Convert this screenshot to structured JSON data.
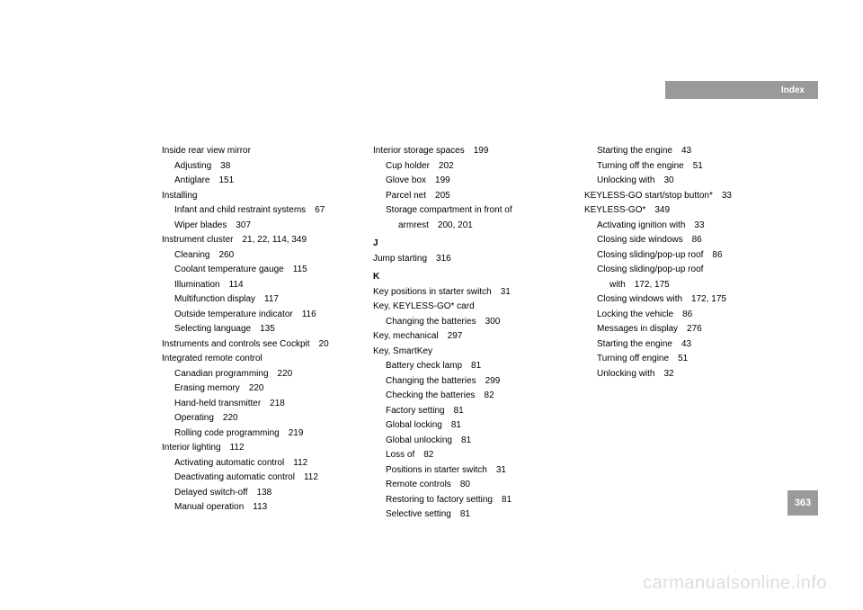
{
  "header": {
    "label": "Index"
  },
  "page_number": "363",
  "watermark": "carmanualsonline.info",
  "colors": {
    "bar_bg": "#9a9a9a",
    "bar_text": "#ffffff",
    "body_text": "#000000",
    "watermark": "#dddddd",
    "page_bg": "#ffffff"
  },
  "columns": [
    {
      "entries": [
        {
          "level": 0,
          "text": "Inside rear view mirror",
          "pages": ""
        },
        {
          "level": 1,
          "text": "Adjusting",
          "pages": "38"
        },
        {
          "level": 1,
          "text": "Antiglare",
          "pages": "151"
        },
        {
          "level": 0,
          "text": "Installing",
          "pages": ""
        },
        {
          "level": 1,
          "text": "Infant and child restraint systems",
          "pages": "67"
        },
        {
          "level": 1,
          "text": "Wiper blades",
          "pages": "307"
        },
        {
          "level": 0,
          "text": "Instrument cluster",
          "pages": "21, 22, 114, 349"
        },
        {
          "level": 1,
          "text": "Cleaning",
          "pages": "260"
        },
        {
          "level": 1,
          "text": "Coolant temperature gauge",
          "pages": "115"
        },
        {
          "level": 1,
          "text": "Illumination",
          "pages": "114"
        },
        {
          "level": 1,
          "text": "Multifunction display",
          "pages": "117"
        },
        {
          "level": 1,
          "text": "Outside temperature indicator",
          "pages": "116"
        },
        {
          "level": 1,
          "text": "Selecting language",
          "pages": "135"
        },
        {
          "level": 0,
          "text": "Instruments and controls see Cockpit",
          "pages": "20"
        },
        {
          "level": 0,
          "text": "Integrated remote control",
          "pages": ""
        },
        {
          "level": 1,
          "text": "Canadian programming",
          "pages": "220"
        },
        {
          "level": 1,
          "text": "Erasing memory",
          "pages": "220"
        },
        {
          "level": 1,
          "text": "Hand-held transmitter",
          "pages": "218"
        },
        {
          "level": 1,
          "text": "Operating",
          "pages": "220"
        },
        {
          "level": 1,
          "text": "Rolling code programming",
          "pages": "219"
        },
        {
          "level": 0,
          "text": "Interior lighting",
          "pages": "112"
        },
        {
          "level": 1,
          "text": "Activating automatic control",
          "pages": "112"
        },
        {
          "level": 1,
          "text": "Deactivating automatic control",
          "pages": "112"
        },
        {
          "level": 1,
          "text": "Delayed switch-off",
          "pages": "138"
        },
        {
          "level": 1,
          "text": "Manual operation",
          "pages": "113"
        }
      ]
    },
    {
      "entries": [
        {
          "level": 0,
          "text": "Interior storage spaces",
          "pages": "199"
        },
        {
          "level": 1,
          "text": "Cup holder",
          "pages": "202"
        },
        {
          "level": 1,
          "text": "Glove box",
          "pages": "199"
        },
        {
          "level": 1,
          "text": "Parcel net",
          "pages": "205"
        },
        {
          "level": 1,
          "text": "Storage compartment in front of",
          "pages": ""
        },
        {
          "level": 2,
          "text": "armrest",
          "pages": "200, 201"
        },
        {
          "level": -1,
          "text": "J",
          "pages": ""
        },
        {
          "level": 0,
          "text": "Jump starting",
          "pages": "316"
        },
        {
          "level": -1,
          "text": "K",
          "pages": ""
        },
        {
          "level": 0,
          "text": "Key positions in starter switch",
          "pages": "31"
        },
        {
          "level": 0,
          "text": "Key, KEYLESS-GO* card",
          "pages": ""
        },
        {
          "level": 1,
          "text": "Changing the batteries",
          "pages": "300"
        },
        {
          "level": 0,
          "text": "Key, mechanical",
          "pages": "297"
        },
        {
          "level": 0,
          "text": "Key, SmartKey",
          "pages": ""
        },
        {
          "level": 1,
          "text": "Battery check lamp",
          "pages": "81"
        },
        {
          "level": 1,
          "text": "Changing the batteries",
          "pages": "299"
        },
        {
          "level": 1,
          "text": "Checking the batteries",
          "pages": "82"
        },
        {
          "level": 1,
          "text": "Factory setting",
          "pages": "81"
        },
        {
          "level": 1,
          "text": "Global locking",
          "pages": "81"
        },
        {
          "level": 1,
          "text": "Global unlocking",
          "pages": "81"
        },
        {
          "level": 1,
          "text": "Loss of",
          "pages": "82"
        },
        {
          "level": 1,
          "text": "Positions in starter switch",
          "pages": "31"
        },
        {
          "level": 1,
          "text": "Remote controls",
          "pages": "80"
        },
        {
          "level": 1,
          "text": "Restoring to factory setting",
          "pages": "81"
        },
        {
          "level": 1,
          "text": "Selective setting",
          "pages": "81"
        }
      ]
    },
    {
      "entries": [
        {
          "level": 1,
          "text": "Starting the engine",
          "pages": "43"
        },
        {
          "level": 1,
          "text": "Turning off the engine",
          "pages": "51"
        },
        {
          "level": 1,
          "text": "Unlocking with",
          "pages": "30"
        },
        {
          "level": 0,
          "text": "KEYLESS-GO start/stop button*",
          "pages": "33"
        },
        {
          "level": 0,
          "text": "KEYLESS-GO*",
          "pages": "349"
        },
        {
          "level": 1,
          "text": "Activating ignition with",
          "pages": "33"
        },
        {
          "level": 1,
          "text": "Closing side windows",
          "pages": "86"
        },
        {
          "level": 1,
          "text": "Closing sliding/pop-up roof",
          "pages": "86"
        },
        {
          "level": 1,
          "text": "Closing sliding/pop-up roof",
          "pages": ""
        },
        {
          "level": 2,
          "text": "with",
          "pages": "172, 175"
        },
        {
          "level": 1,
          "text": "Closing windows with",
          "pages": "172, 175"
        },
        {
          "level": 1,
          "text": "Locking the vehicle",
          "pages": "86"
        },
        {
          "level": 1,
          "text": "Messages in display",
          "pages": "276"
        },
        {
          "level": 1,
          "text": "Starting the engine",
          "pages": "43"
        },
        {
          "level": 1,
          "text": "Turning off engine",
          "pages": "51"
        },
        {
          "level": 1,
          "text": "Unlocking with",
          "pages": "32"
        }
      ]
    }
  ]
}
